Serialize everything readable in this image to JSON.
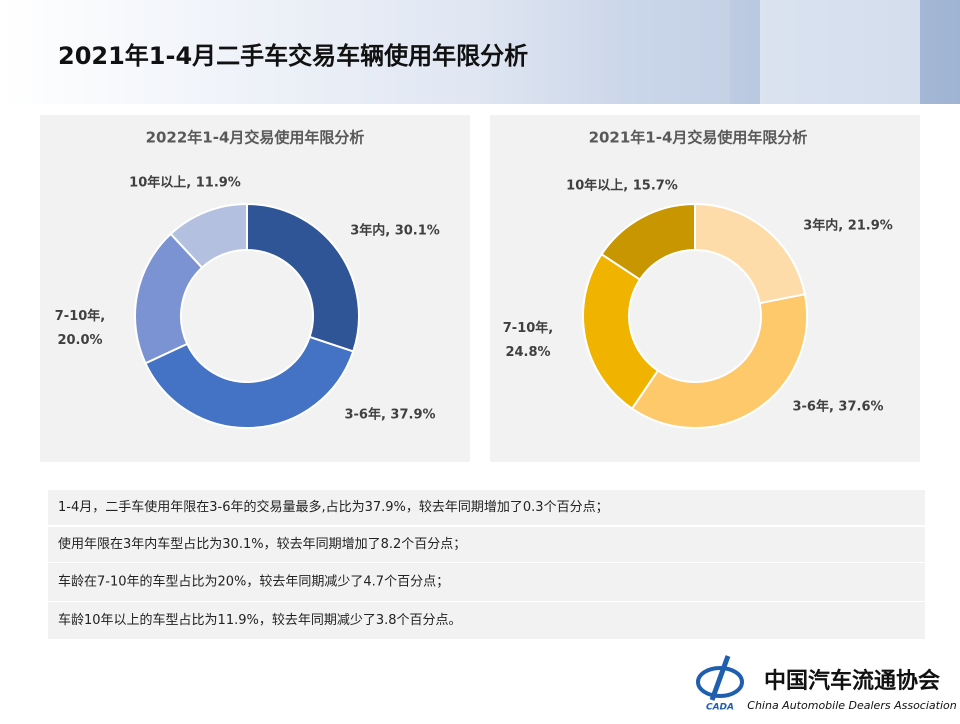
{
  "header": {
    "title": "2021年1-4月二手车交易车辆使用年限分析"
  },
  "chart_data": [
    {
      "type": "pie",
      "donut": true,
      "title": "2022年1-4月交易使用年限分析",
      "categories": [
        "3年内",
        "3-6年",
        "7-10年",
        "10年以上"
      ],
      "values": [
        30.1,
        37.9,
        20.0,
        11.9
      ],
      "value_labels": [
        "3年内, 30.1%",
        "3-6年, 37.9%",
        "7-10年, 20.0%",
        "10年以上, 11.9%"
      ],
      "colors": [
        "#2f5597",
        "#4472c4",
        "#7b93d2",
        "#b4c0e0"
      ]
    },
    {
      "type": "pie",
      "donut": true,
      "title": "2021年1-4月交易使用年限分析",
      "categories": [
        "3年内",
        "3-6年",
        "7-10年",
        "10年以上"
      ],
      "values": [
        21.9,
        37.6,
        24.8,
        15.7
      ],
      "value_labels": [
        "3年内, 21.9%",
        "3-6年, 37.6%",
        "7-10年, 24.8%",
        "10年以上, 15.7%"
      ],
      "colors": [
        "#fddcaa",
        "#fec96a",
        "#f0b400",
        "#c89600"
      ]
    }
  ],
  "notes": [
    "1-4月，二手车使用年限在3-6年的交易量最多,占比为37.9%，较去年同期增加了0.3个百分点；",
    "使用年限在3年内车型占比为30.1%，较去年同期增加了8.2个百分点；",
    "车龄在7-10年的车型占比为20%，较去年同期减少了4.7个百分点；",
    "车龄10年以上的车型占比为11.9%，较去年同期减少了3.8个百分点。"
  ],
  "logo": {
    "abbr": "CADA",
    "name_cn": "中国汽车流通协会",
    "name_en": "China Automobile Dealers Association"
  }
}
